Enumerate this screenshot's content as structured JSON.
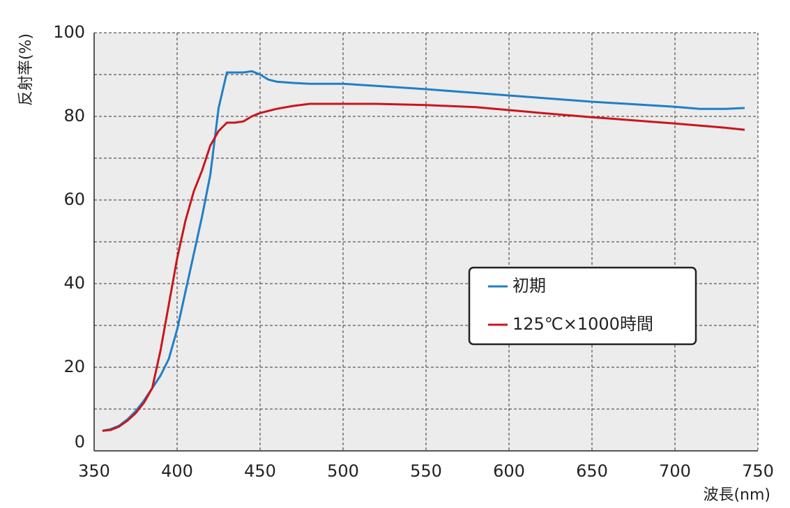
{
  "chart_data": {
    "type": "line",
    "y_label": "反射率(%)",
    "x_label": "波長(nm)",
    "xlim": [
      350,
      750
    ],
    "xticks": [
      350,
      400,
      450,
      500,
      550,
      600,
      650,
      700,
      750
    ],
    "ylim": [
      0,
      100
    ],
    "yticks": [
      0,
      20,
      40,
      60,
      80,
      100
    ],
    "y_minor_ticks": [
      10,
      30,
      50,
      70,
      90
    ],
    "grid": true,
    "legend": "right",
    "x": [
      355,
      360,
      365,
      370,
      375,
      380,
      385,
      390,
      395,
      400,
      405,
      410,
      415,
      420,
      425,
      430,
      435,
      440,
      445,
      450,
      455,
      460,
      470,
      480,
      500,
      520,
      550,
      580,
      600,
      620,
      650,
      700,
      715,
      730,
      742
    ],
    "series": [
      {
        "name": "初期",
        "color": "#1f7fc6",
        "values": [
          4.8,
          5.2,
          6,
          7.5,
          9.5,
          12,
          15,
          18,
          22,
          29,
          38,
          47,
          56,
          66,
          82,
          90.5,
          90.5,
          90.5,
          90.8,
          90,
          88.8,
          88.3,
          88,
          87.8,
          87.8,
          87.3,
          86.5,
          85.6,
          85,
          84.4,
          83.5,
          82.3,
          81.8,
          81.8,
          82
        ]
      },
      {
        "name": "125℃×1000時間",
        "color": "#c8161d",
        "values": [
          4.8,
          5,
          5.8,
          7.2,
          9,
          11.5,
          15,
          24,
          35,
          46,
          55,
          62,
          67,
          73,
          76.5,
          78.5,
          78.5,
          78.8,
          80,
          80.8,
          81.3,
          81.8,
          82.5,
          83,
          83,
          83,
          82.7,
          82.2,
          81.5,
          80.8,
          79.8,
          78.3,
          77.8,
          77.3,
          76.8
        ]
      }
    ]
  }
}
